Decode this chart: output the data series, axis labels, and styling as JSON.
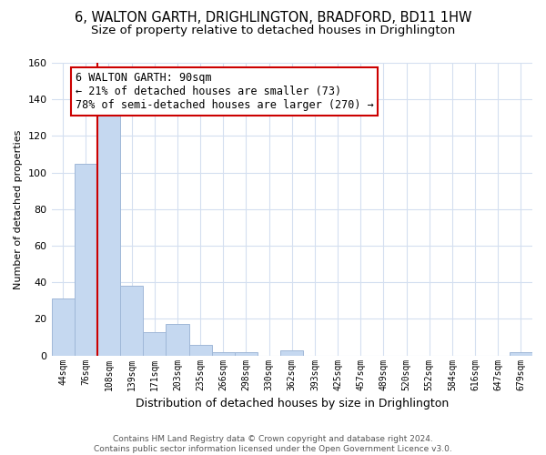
{
  "title": "6, WALTON GARTH, DRIGHLINGTON, BRADFORD, BD11 1HW",
  "subtitle": "Size of property relative to detached houses in Drighlington",
  "xlabel": "Distribution of detached houses by size in Drighlington",
  "ylabel": "Number of detached properties",
  "bar_labels": [
    "44sqm",
    "76sqm",
    "108sqm",
    "139sqm",
    "171sqm",
    "203sqm",
    "235sqm",
    "266sqm",
    "298sqm",
    "330sqm",
    "362sqm",
    "393sqm",
    "425sqm",
    "457sqm",
    "489sqm",
    "520sqm",
    "552sqm",
    "584sqm",
    "616sqm",
    "647sqm",
    "679sqm"
  ],
  "bar_values": [
    31,
    105,
    131,
    38,
    13,
    17,
    6,
    2,
    2,
    0,
    3,
    0,
    0,
    0,
    0,
    0,
    0,
    0,
    0,
    0,
    2
  ],
  "bar_color": "#c5d8f0",
  "bar_edge_color": "#a0b8d8",
  "vline_color": "#cc0000",
  "ylim": [
    0,
    160
  ],
  "yticks": [
    0,
    20,
    40,
    60,
    80,
    100,
    120,
    140,
    160
  ],
  "annotation_title": "6 WALTON GARTH: 90sqm",
  "annotation_line1": "← 21% of detached houses are smaller (73)",
  "annotation_line2": "78% of semi-detached houses are larger (270) →",
  "annotation_box_color": "#ffffff",
  "annotation_box_edge_color": "#cc0000",
  "footer_line1": "Contains HM Land Registry data © Crown copyright and database right 2024.",
  "footer_line2": "Contains public sector information licensed under the Open Government Licence v3.0.",
  "background_color": "#ffffff",
  "grid_color": "#d4dff0",
  "title_fontsize": 10.5,
  "subtitle_fontsize": 9.5,
  "ylabel_fontsize": 8,
  "xlabel_fontsize": 9
}
